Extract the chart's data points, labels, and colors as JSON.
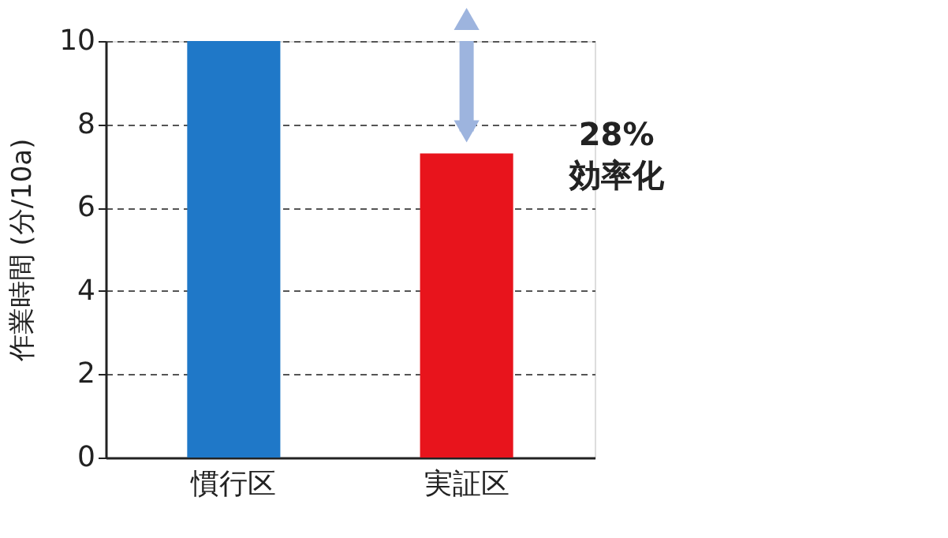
{
  "chart_data": {
    "type": "bar",
    "categories": [
      "慣行区",
      "実証区"
    ],
    "values": [
      10,
      7.3
    ],
    "colors": [
      "#1f78c8",
      "#e8141c"
    ],
    "ylabel": "作業時間 (分/10a)",
    "ylim": [
      0,
      10
    ],
    "yticks": [
      0,
      2,
      4,
      6,
      8,
      10
    ],
    "grid": "y",
    "annotations": [
      "28%\n効率化"
    ]
  }
}
